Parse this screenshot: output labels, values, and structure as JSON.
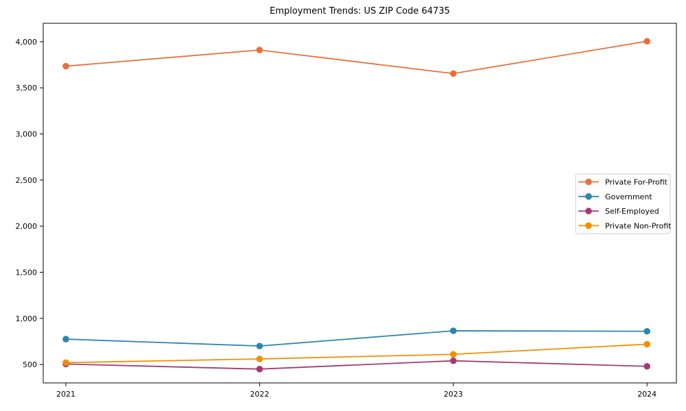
{
  "chart_data": {
    "type": "line",
    "title": "Employment Trends: US ZIP Code 64735",
    "xlabel": "",
    "ylabel": "",
    "x": [
      2021,
      2022,
      2023,
      2024
    ],
    "series": [
      {
        "name": "Private For-Profit",
        "color": "#E6703C",
        "values": [
          3735,
          3910,
          3655,
          4005
        ]
      },
      {
        "name": "Government",
        "color": "#2E86AB",
        "values": [
          775,
          700,
          865,
          860
        ]
      },
      {
        "name": "Self-Employed",
        "color": "#A23B72",
        "values": [
          505,
          450,
          540,
          480
        ]
      },
      {
        "name": "Private Non-Profit",
        "color": "#F18F01",
        "values": [
          520,
          560,
          610,
          720
        ]
      }
    ],
    "yticks": [
      500,
      1000,
      1500,
      2000,
      2500,
      3000,
      3500,
      4000
    ],
    "ytick_labels": [
      "500",
      "1,000",
      "1,500",
      "2,000",
      "2,500",
      "3,000",
      "3,500",
      "4,000"
    ],
    "xtick_labels": [
      "2021",
      "2022",
      "2023",
      "2024"
    ],
    "ylim": [
      300,
      4200
    ],
    "grid": false,
    "legend_position": "center right",
    "legend_entries": [
      "Private For-Profit",
      "Government",
      "Self-Employed",
      "Private Non-Profit"
    ],
    "axis_color": "#000000",
    "background_color": "#ffffff",
    "legend_border_color": "#cccccc"
  }
}
